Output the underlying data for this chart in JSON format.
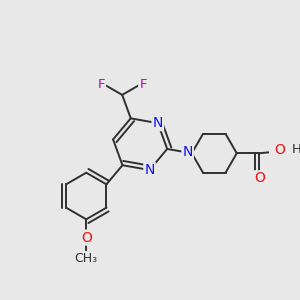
{
  "bg_color": "#e8e8e8",
  "bond_color": "#303030",
  "bond_width": 1.4,
  "atom_colors": {
    "N": "#1010ee",
    "O": "#ee1010",
    "F": "#cc00bb",
    "C": "#303030"
  },
  "font_size": 9.5,
  "figsize": [
    3.0,
    3.0
  ],
  "dpi": 100,
  "xlim": [
    -1.6,
    1.6
  ],
  "ylim": [
    -1.6,
    1.6
  ]
}
